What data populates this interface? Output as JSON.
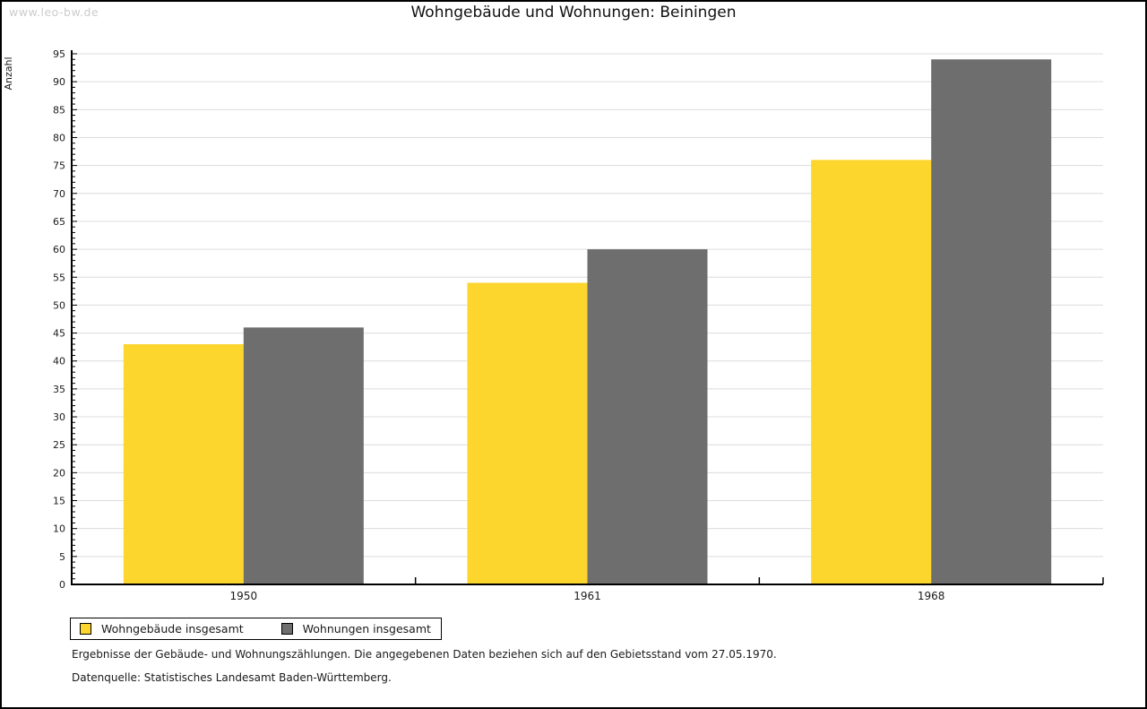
{
  "watermark": "www.leo-bw.de",
  "chart_data": {
    "type": "bar",
    "title": "Wohngebäude und Wohnungen: Beiningen",
    "ylabel": "Anzahl",
    "xlabel": "",
    "categories": [
      "1950",
      "1961",
      "1968"
    ],
    "series": [
      {
        "name": "Wohngebäude insgesamt",
        "color": "#FCD52D",
        "values": [
          43,
          54,
          76
        ]
      },
      {
        "name": "Wohnungen insgesamt",
        "color": "#6E6E6E",
        "values": [
          46,
          60,
          94
        ]
      }
    ],
    "ylim": [
      0,
      95
    ],
    "y_major_step": 5,
    "y_minor_step": 1,
    "grid": true,
    "gridline_color": "#DCDCDC",
    "axis_color": "#000000",
    "legend_position": "bottom-left"
  },
  "footnotes": {
    "line1": "Ergebnisse der Gebäude- und Wohnungszählungen. Die angegebenen Daten beziehen sich auf den Gebietsstand vom 27.05.1970.",
    "line2": "Datenquelle: Statistisches Landesamt Baden-Württemberg."
  }
}
